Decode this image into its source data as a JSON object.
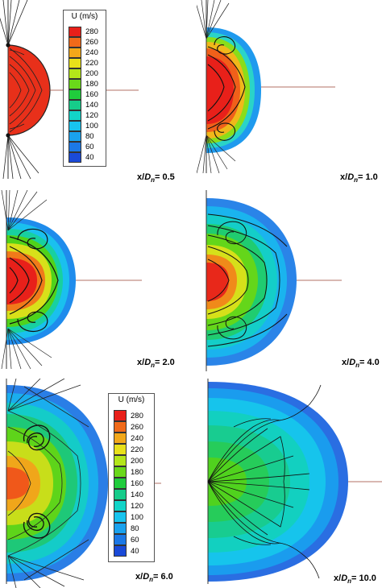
{
  "legend_title": "U (m/s)",
  "legend_levels": [
    "280",
    "260",
    "240",
    "220",
    "200",
    "180",
    "160",
    "140",
    "120",
    "100",
    "80",
    "60",
    "40"
  ],
  "legend_colors": [
    "#e8201a",
    "#f06a1a",
    "#f2a81a",
    "#e8e01a",
    "#b4e61a",
    "#6ad81a",
    "#20cc3c",
    "#16cc8a",
    "#12d4c8",
    "#18c4ee",
    "#1aa2ee",
    "#1c78e6",
    "#1a4ad8"
  ],
  "panels": [
    {
      "prefix": "x/",
      "var": "D",
      "sub": "n",
      "suffix": "= 0.5"
    },
    {
      "prefix": "x/",
      "var": "D",
      "sub": "n",
      "suffix": "= 1.0"
    },
    {
      "prefix": "x/",
      "var": "D",
      "sub": "n",
      "suffix": "= 2.0"
    },
    {
      "prefix": "x/",
      "var": "D",
      "sub": "n",
      "suffix": "= 4.0"
    },
    {
      "prefix": "x/",
      "var": "D",
      "sub": "n",
      "suffix": "= 6.0"
    },
    {
      "prefix": "x/",
      "var": "D",
      "sub": "n",
      "suffix": "= 10.0"
    }
  ]
}
